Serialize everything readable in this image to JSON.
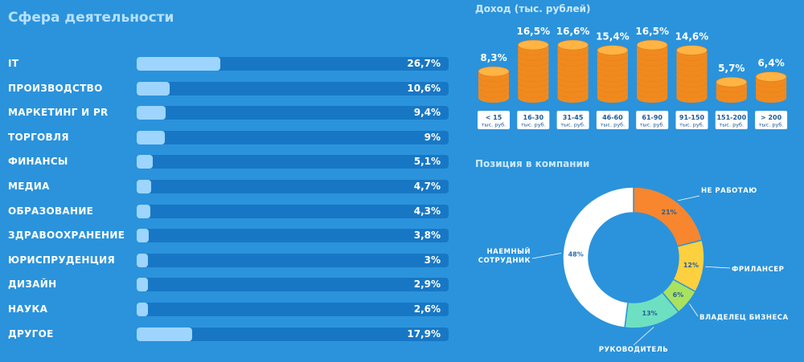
{
  "chart_data": [
    {
      "type": "bar",
      "title": "Сфера деятельности",
      "categories": [
        "IT",
        "ПРОИЗВОДСТВО",
        "МАРКЕТИНГ И PR",
        "ТОРГОВЛЯ",
        "ФИНАНСЫ",
        "МЕДИА",
        "ОБРАЗОВАНИЕ",
        "ЗДРАВООХРАНЕНИЕ",
        "ЮРИСПРУДЕНЦИЯ",
        "ДИЗАЙН",
        "НАУКА",
        "ДРУГОЕ"
      ],
      "values": [
        26.7,
        10.6,
        9.4,
        9,
        5.1,
        4.7,
        4.3,
        3.8,
        3,
        2.9,
        2.6,
        17.9
      ],
      "value_labels": [
        "26,7%",
        "10,6%",
        "9,4%",
        "9%",
        "5,1%",
        "4,7%",
        "4,3%",
        "3,8%",
        "3%",
        "2,9%",
        "2,6%",
        "17,9%"
      ],
      "orientation": "horizontal",
      "xlim": [
        0,
        100
      ]
    },
    {
      "type": "bar",
      "title": "Доход (тыс. рублей)",
      "categories": [
        "< 15",
        "16-30",
        "31-45",
        "46-60",
        "61-90",
        "91-150",
        "151-200",
        "> 200"
      ],
      "unit_label": "тыс. руб.",
      "values": [
        8.3,
        16.5,
        16.6,
        15.4,
        16.5,
        14.6,
        5.7,
        6.4
      ],
      "value_labels": [
        "8,3%",
        "16,5%",
        "16,6%",
        "15,4%",
        "16,5%",
        "14,6%",
        "5,7%",
        "6,4%"
      ]
    },
    {
      "type": "pie",
      "title": "Позиция в компании",
      "slices": [
        {
          "name": "НЕ РАБОТАЮ",
          "value": 21,
          "label": "21%",
          "color": "#f7862f"
        },
        {
          "name": "ФРИЛАНСЕР",
          "value": 12,
          "label": "12%",
          "color": "#fcd03e"
        },
        {
          "name": "ВЛАДЕЛЕЦ БИЗНЕСА",
          "value": 6,
          "label": "6%",
          "color": "#a9e25f"
        },
        {
          "name": "РУКОВОДИТЕЛЬ",
          "value": 13,
          "label": "13%",
          "color": "#6ee0c2"
        },
        {
          "name": "НАЕМНЫЙ СОТРУДНИК",
          "value": 48,
          "label": "48%",
          "color": "#ffffff"
        }
      ]
    }
  ],
  "colors": {
    "background": "#2a93dc",
    "track": "#1877c4",
    "fill": "#9dd5ff",
    "coin_light": "#ffb443",
    "coin_dark": "#f08a1e",
    "caption_bg": "#ffffff"
  }
}
